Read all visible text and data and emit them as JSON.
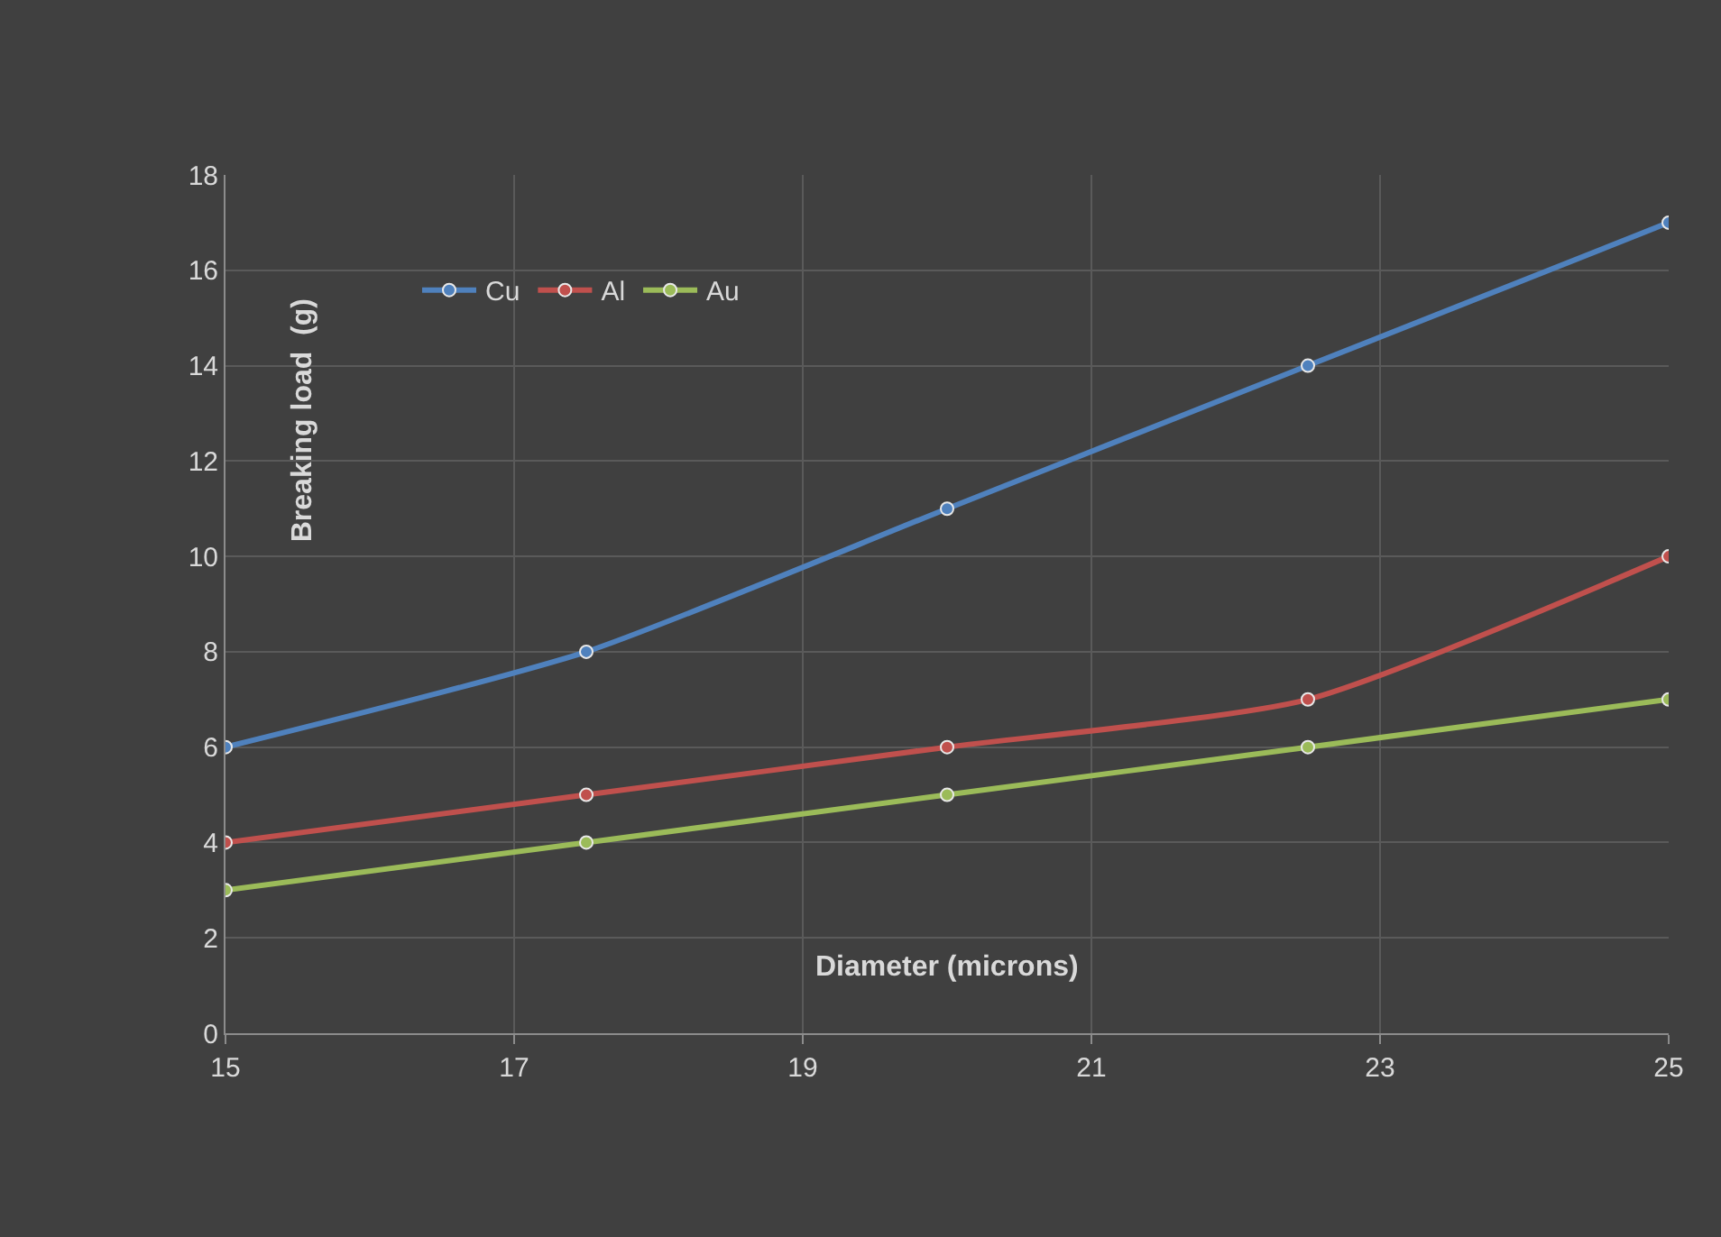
{
  "chart_data": {
    "type": "line",
    "xlabel": "Diameter (microns)",
    "ylabel": "Breaking load  (g)",
    "x": [
      15,
      17.5,
      20,
      22.5,
      25
    ],
    "series": [
      {
        "name": "Cu",
        "color": "#4f81bd",
        "values": [
          6,
          8,
          11,
          14,
          17
        ]
      },
      {
        "name": "Al",
        "color": "#c0504d",
        "values": [
          4,
          5,
          6,
          7,
          10
        ]
      },
      {
        "name": "Au",
        "color": "#9bbb59",
        "values": [
          3,
          4,
          5,
          6,
          7
        ]
      }
    ],
    "xlim": [
      15,
      25
    ],
    "xticks": [
      15,
      17,
      19,
      21,
      23,
      25
    ],
    "ylim": [
      0,
      18
    ],
    "yticks": [
      0,
      2,
      4,
      6,
      8,
      10,
      12,
      14,
      16,
      18
    ],
    "grid": true,
    "legend": "top left",
    "marker": "circle",
    "line_style": "solid"
  }
}
